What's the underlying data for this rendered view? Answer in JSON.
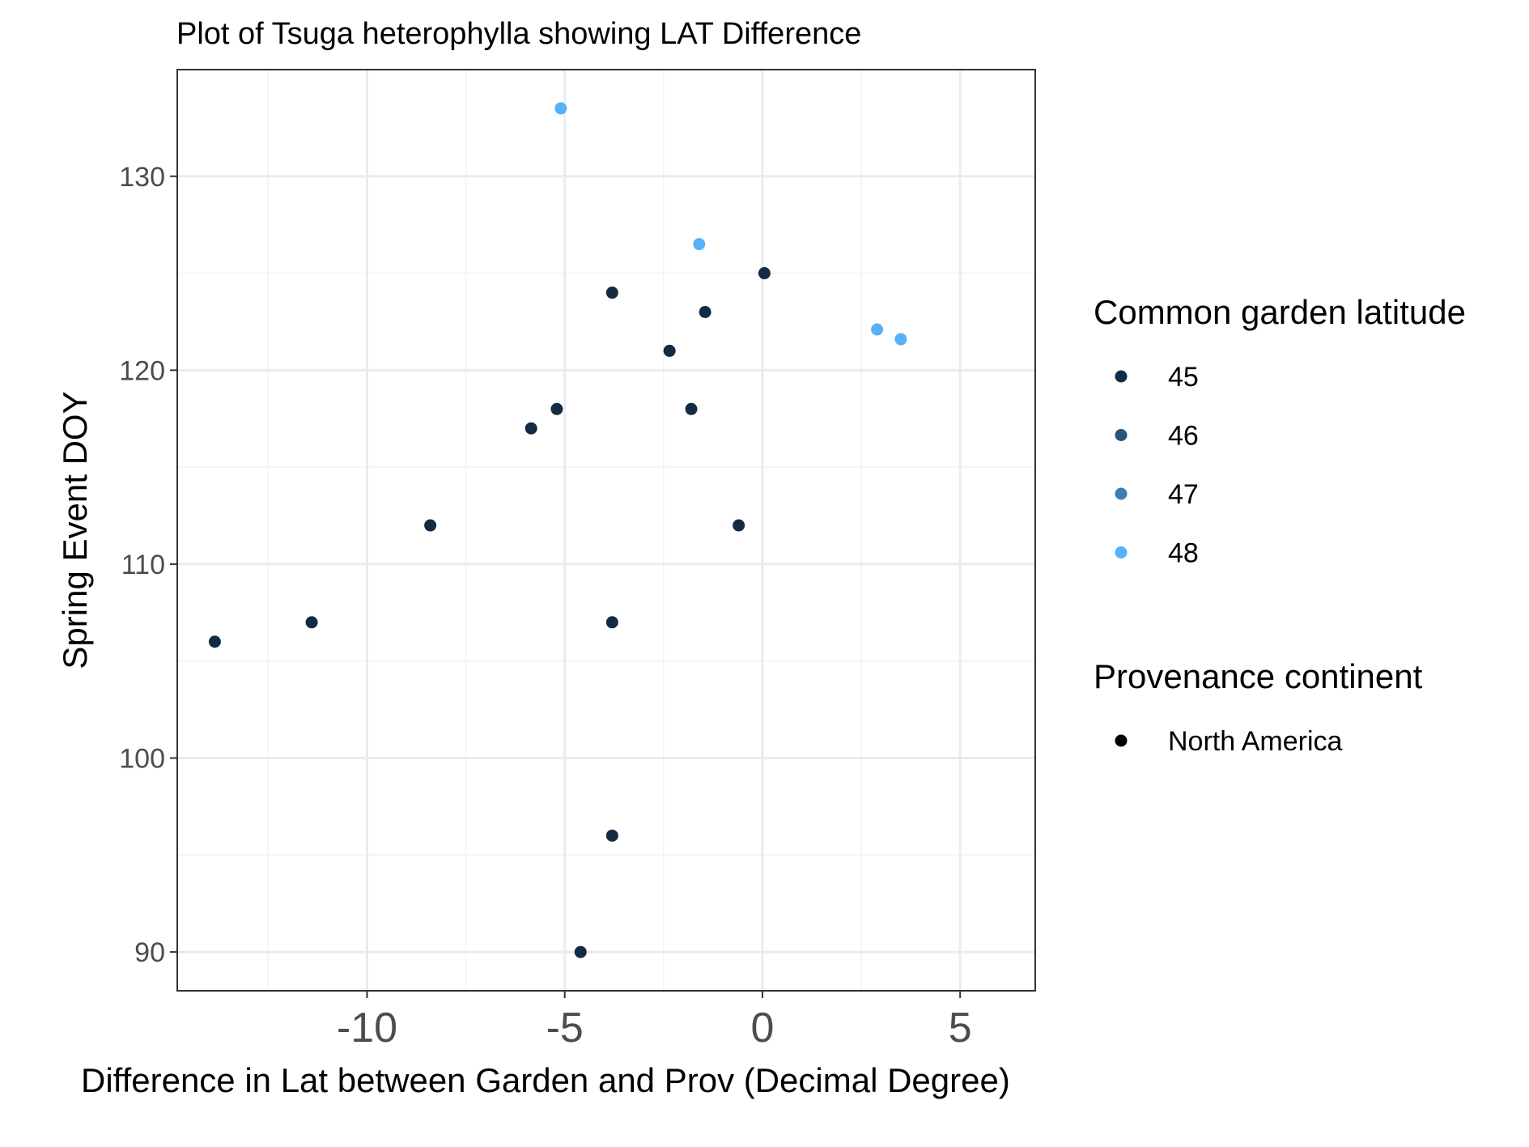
{
  "chart_data": {
    "type": "scatter",
    "title": "Plot of Tsuga heterophylla showing LAT Difference",
    "xlabel": "Difference in Lat between Garden and Prov (Decimal Degree)",
    "ylabel": "Spring Event DOY",
    "xlim": [
      -14.8,
      6.9
    ],
    "ylim": [
      88,
      135.5
    ],
    "x_ticks": [
      -10,
      -5,
      0,
      5
    ],
    "x_tick_labels": [
      "-10",
      "-5",
      "0",
      "5"
    ],
    "y_ticks": [
      90,
      100,
      110,
      120,
      130
    ],
    "y_tick_labels": [
      "90",
      "100",
      "110",
      "120",
      "130"
    ],
    "x_minor": [
      -12.5,
      -7.5,
      -2.5,
      2.5
    ],
    "y_minor": [
      95,
      105,
      115,
      125
    ],
    "grid": true,
    "legend_placement": "right",
    "legends": [
      {
        "title": "Common garden latitude",
        "entries": [
          {
            "label": "45",
            "color": "#132B43"
          },
          {
            "label": "46",
            "color": "#28547A"
          },
          {
            "label": "47",
            "color": "#3B7FB6"
          },
          {
            "label": "48",
            "color": "#56B1F7"
          }
        ]
      },
      {
        "title": "Provenance continent",
        "entries": [
          {
            "label": "North America",
            "color": "#000000"
          }
        ]
      }
    ],
    "points": [
      {
        "x": -5.1,
        "y": 133.5,
        "garden_lat": 48
      },
      {
        "x": -1.6,
        "y": 126.5,
        "garden_lat": 48
      },
      {
        "x": 2.9,
        "y": 122.1,
        "garden_lat": 48
      },
      {
        "x": 3.5,
        "y": 121.6,
        "garden_lat": 48
      },
      {
        "x": 0.05,
        "y": 125,
        "garden_lat": 45
      },
      {
        "x": -3.8,
        "y": 124,
        "garden_lat": 45
      },
      {
        "x": -1.45,
        "y": 123,
        "garden_lat": 45
      },
      {
        "x": -2.35,
        "y": 121,
        "garden_lat": 45
      },
      {
        "x": -5.2,
        "y": 118,
        "garden_lat": 45
      },
      {
        "x": -1.8,
        "y": 118,
        "garden_lat": 45
      },
      {
        "x": -5.85,
        "y": 117,
        "garden_lat": 45
      },
      {
        "x": -8.4,
        "y": 112,
        "garden_lat": 45
      },
      {
        "x": -0.6,
        "y": 112,
        "garden_lat": 45
      },
      {
        "x": -11.4,
        "y": 107,
        "garden_lat": 45
      },
      {
        "x": -3.8,
        "y": 107,
        "garden_lat": 45
      },
      {
        "x": -13.85,
        "y": 106,
        "garden_lat": 45
      },
      {
        "x": -3.8,
        "y": 96,
        "garden_lat": 45
      },
      {
        "x": -4.6,
        "y": 90,
        "garden_lat": 45
      }
    ]
  }
}
